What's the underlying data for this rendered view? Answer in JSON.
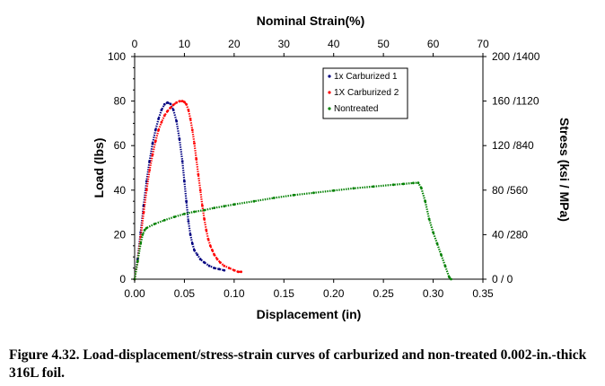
{
  "chart_data": {
    "type": "scatter",
    "title": "",
    "xlabel": "Displacement (in)",
    "ylabel": "Load (lbs)",
    "x2label": "Nominal Strain(%)",
    "y2label": "Stress (ksi / MPa)",
    "xlim": [
      0,
      0.35
    ],
    "ylim": [
      0,
      100
    ],
    "x2lim": [
      0,
      70
    ],
    "xticks": [
      "0.00",
      "0.05",
      "0.10",
      "0.15",
      "0.20",
      "0.25",
      "0.30",
      "0.35"
    ],
    "yticks": [
      "0",
      "20",
      "40",
      "60",
      "80",
      "100"
    ],
    "x2ticks": [
      "0",
      "10",
      "20",
      "30",
      "40",
      "50",
      "60",
      "70"
    ],
    "y2ticks": [
      "0 / 0",
      "40 /280",
      "80 /560",
      "120 /840",
      "160 /1120",
      "200 /1400"
    ],
    "legend_position": "top-right",
    "series": [
      {
        "name": "1x Carburized 1",
        "color": "#000080",
        "x": [
          0.0,
          0.003,
          0.006,
          0.009,
          0.012,
          0.015,
          0.018,
          0.021,
          0.024,
          0.027,
          0.03,
          0.033,
          0.036,
          0.039,
          0.042,
          0.045,
          0.048,
          0.05,
          0.052,
          0.054,
          0.056,
          0.058,
          0.06,
          0.063,
          0.066,
          0.07,
          0.075,
          0.08,
          0.085,
          0.09
        ],
        "y": [
          0,
          9,
          21,
          33,
          44,
          53,
          61,
          67,
          72,
          76,
          78.5,
          79.3,
          78.7,
          76,
          71,
          63,
          53,
          44,
          35,
          26,
          20,
          16,
          13,
          11,
          9,
          7.5,
          6,
          5,
          4.5,
          4
        ]
      },
      {
        "name": "1X Carburized 2",
        "color": "#ff0000",
        "x": [
          0.0,
          0.003,
          0.006,
          0.009,
          0.012,
          0.015,
          0.018,
          0.021,
          0.024,
          0.027,
          0.03,
          0.033,
          0.036,
          0.039,
          0.042,
          0.045,
          0.048,
          0.05,
          0.052,
          0.054,
          0.056,
          0.058,
          0.06,
          0.062,
          0.064,
          0.066,
          0.068,
          0.07,
          0.072,
          0.074,
          0.076,
          0.078,
          0.08,
          0.083,
          0.086,
          0.09,
          0.095,
          0.1,
          0.104,
          0.107
        ],
        "y": [
          0,
          8,
          19,
          30,
          40,
          49,
          56,
          62,
          67,
          70.5,
          73.5,
          75.5,
          77,
          78.3,
          79.3,
          79.9,
          80,
          79.6,
          78.5,
          76,
          72,
          67,
          61,
          54,
          47,
          40,
          33,
          27,
          22,
          18,
          15,
          13,
          11,
          9,
          7.5,
          6,
          5,
          4,
          3.3,
          3.3
        ]
      },
      {
        "name": "Nontreated",
        "color": "#008000",
        "x": [
          0.0,
          0.003,
          0.006,
          0.008,
          0.01,
          0.012,
          0.02,
          0.03,
          0.04,
          0.05,
          0.06,
          0.07,
          0.08,
          0.09,
          0.1,
          0.12,
          0.14,
          0.16,
          0.18,
          0.2,
          0.22,
          0.24,
          0.26,
          0.27,
          0.28,
          0.285,
          0.288,
          0.292,
          0.296,
          0.3,
          0.304,
          0.308,
          0.312,
          0.316,
          0.318
        ],
        "y": [
          0,
          8,
          16,
          20,
          22,
          23,
          24.8,
          26.5,
          28,
          29.3,
          30.3,
          31,
          32,
          32.8,
          33.6,
          35,
          36.5,
          37.8,
          38.8,
          39.8,
          40.8,
          41.6,
          42.4,
          42.8,
          43.2,
          43.3,
          41,
          35,
          27,
          21,
          16,
          11,
          6,
          1,
          0
        ]
      }
    ]
  },
  "caption": "Figure 4.32.  Load-displacement/stress-strain curves of carburized and non-treated 0.002-in.-thick 316L foil."
}
